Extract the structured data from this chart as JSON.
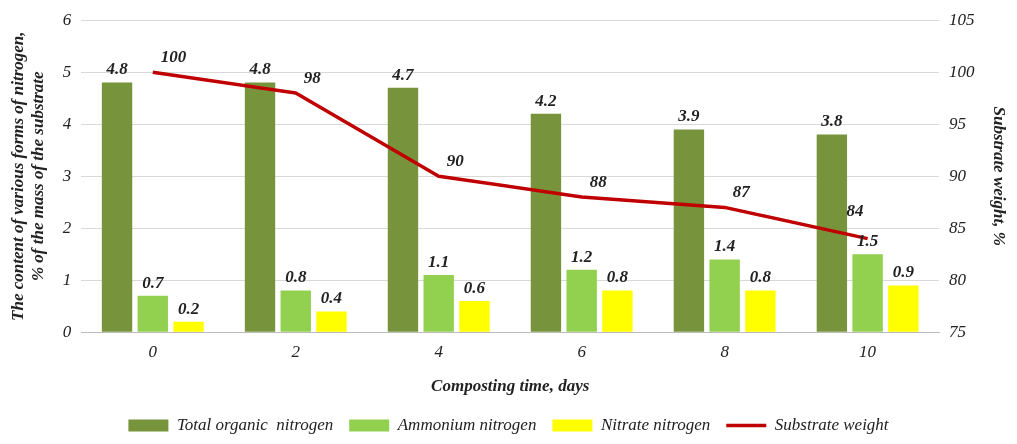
{
  "chart_data": {
    "type": "bar",
    "categories": [
      "0",
      "2",
      "4",
      "6",
      "8",
      "10"
    ],
    "xlabel": "Composting time, days",
    "ylabel": "The content of various forms of nitrogen, % of the mass of the substrate",
    "y2label": "Substrate weight, %",
    "series": [
      {
        "name": "Total organic  nitrogen",
        "color": "#77933c",
        "values": [
          4.8,
          4.8,
          4.7,
          4.2,
          3.9,
          3.8
        ]
      },
      {
        "name": "Ammonium nitrogen",
        "color": "#92d050",
        "values": [
          0.7,
          0.8,
          1.1,
          1.2,
          1.4,
          1.5
        ]
      },
      {
        "name": "Nitrate nitrogen",
        "color": "#ffff00",
        "values": [
          0.2,
          0.4,
          0.6,
          0.8,
          0.8,
          0.9
        ]
      },
      {
        "name": "Substrate weight",
        "type": "line",
        "axis": "y2",
        "color": "#c00000",
        "marker": "none",
        "values": [
          100,
          98,
          90,
          88,
          87,
          84
        ]
      }
    ],
    "ylim": [
      0,
      6
    ],
    "yticks": [
      0,
      1,
      2,
      3,
      4,
      5,
      6
    ],
    "y2lim": [
      75,
      105
    ],
    "y2ticks": [
      75,
      80,
      85,
      90,
      95,
      100,
      105
    ],
    "grid": "y",
    "legend": "bottom",
    "data_labels": true
  }
}
